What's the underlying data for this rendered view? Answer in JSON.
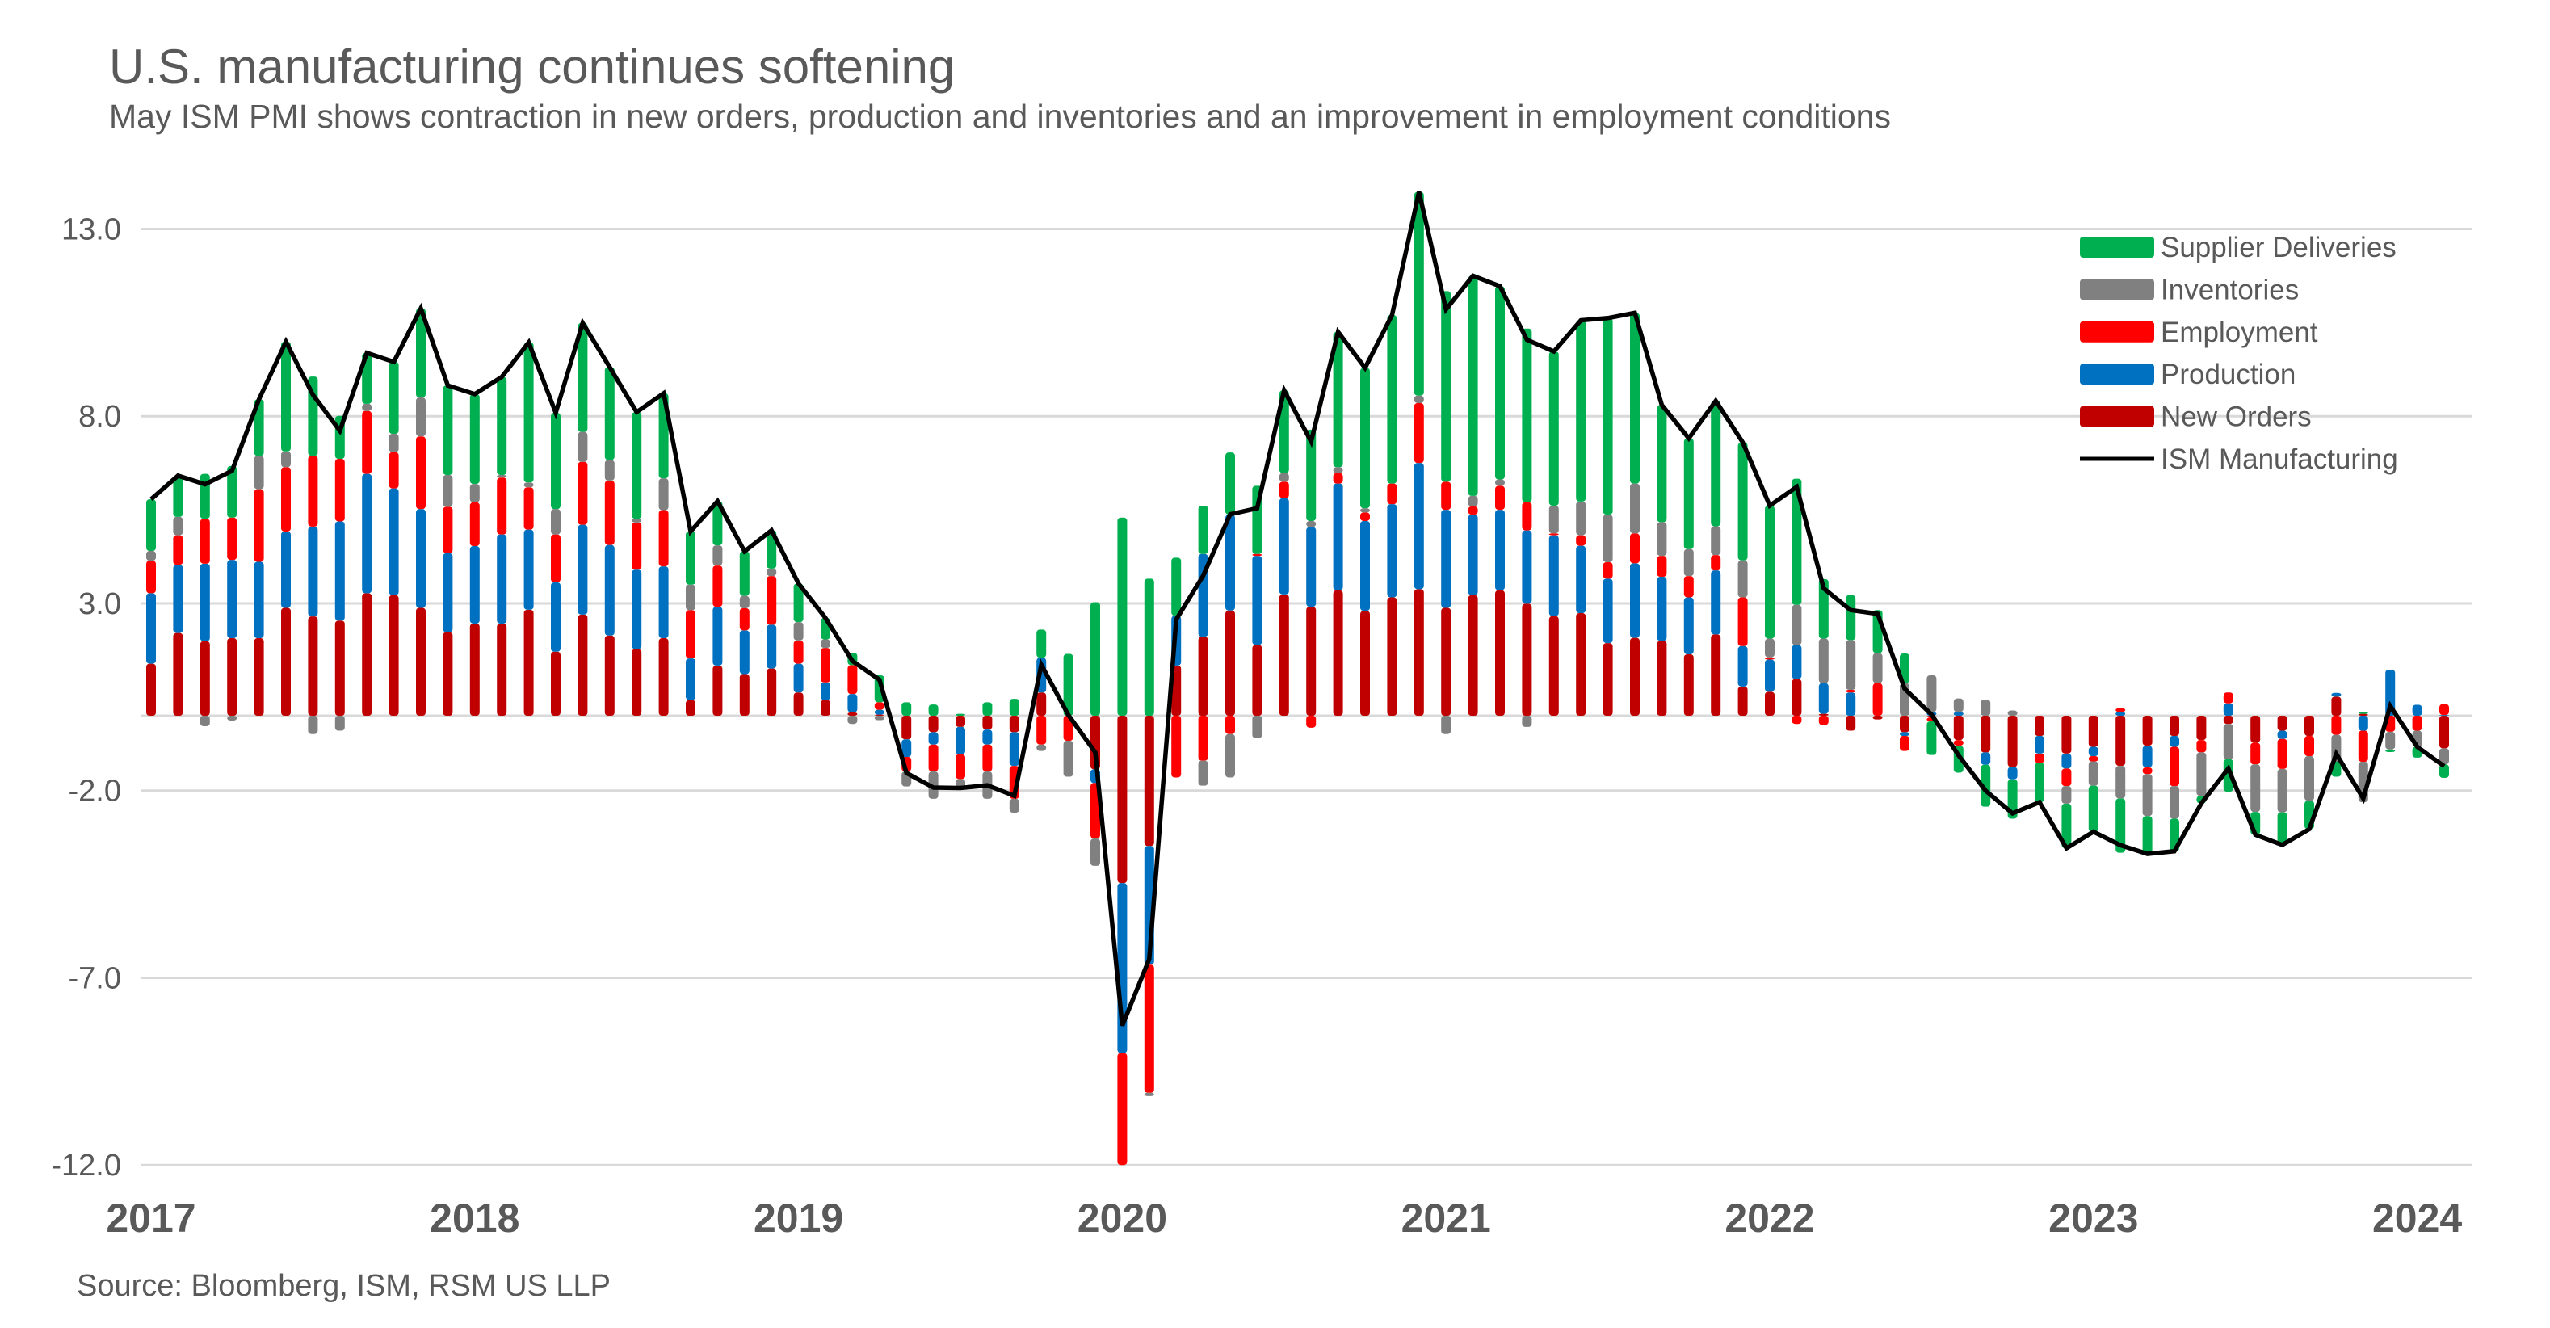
{
  "chart_data": {
    "type": "bar",
    "stacked": true,
    "title": "U.S. manufacturing continues softening",
    "subtitle": "May ISM PMI shows contraction in new orders, production and inventories and an improvement in employment conditions",
    "source": "Source: Bloomberg, ISM, RSM US LLP",
    "xlabel": "",
    "ylabel": "",
    "ylim": [
      -12,
      14
    ],
    "yticks": [
      13,
      8,
      3,
      -2,
      -7,
      -12
    ],
    "ytick_labels": [
      "13.0",
      "8.0",
      "3.0",
      "-2.0",
      "-7.0",
      "-12.0"
    ],
    "xtick_labels": [
      "2017",
      "2018",
      "2019",
      "2020",
      "2021",
      "2022",
      "2023",
      "2024"
    ],
    "grid": true,
    "legend_position": "top-right",
    "dates": [
      "2017-04",
      "2017-05",
      "2017-06",
      "2017-07",
      "2017-08",
      "2017-09",
      "2017-10",
      "2017-11",
      "2017-12",
      "2018-01",
      "2018-02",
      "2018-03",
      "2018-04",
      "2018-05",
      "2018-06",
      "2018-07",
      "2018-08",
      "2018-09",
      "2018-10",
      "2018-11",
      "2018-12",
      "2019-01",
      "2019-02",
      "2019-03",
      "2019-04",
      "2019-05",
      "2019-06",
      "2019-07",
      "2019-08",
      "2019-09",
      "2019-10",
      "2019-11",
      "2019-12",
      "2020-01",
      "2020-02",
      "2020-03",
      "2020-04",
      "2020-05",
      "2020-06",
      "2020-07",
      "2020-08",
      "2020-09",
      "2020-10",
      "2020-11",
      "2020-12",
      "2021-01",
      "2021-02",
      "2021-03",
      "2021-04",
      "2021-05",
      "2021-06",
      "2021-07",
      "2021-08",
      "2021-09",
      "2021-10",
      "2021-11",
      "2021-12",
      "2022-01",
      "2022-02",
      "2022-03",
      "2022-04",
      "2022-05",
      "2022-06",
      "2022-07",
      "2022-08",
      "2022-09",
      "2022-10",
      "2022-11",
      "2022-12",
      "2023-01",
      "2023-02",
      "2023-03",
      "2023-04",
      "2023-05",
      "2023-06",
      "2023-07",
      "2023-08",
      "2023-09",
      "2023-10",
      "2023-11",
      "2023-12",
      "2024-01",
      "2024-02",
      "2024-03",
      "2024-04",
      "2024-05"
    ],
    "series": [
      {
        "name": "New Orders",
        "color": "#C00000",
        "values": [
          1.39,
          2.21,
          1.99,
          2.07,
          2.07,
          2.88,
          2.65,
          2.54,
          3.27,
          3.22,
          2.88,
          2.23,
          2.46,
          2.46,
          2.83,
          1.71,
          2.7,
          2.14,
          1.78,
          2.07,
          0.42,
          1.34,
          1.11,
          1.26,
          0.62,
          0.42,
          0.09,
          0.03,
          -0.63,
          -0.44,
          -0.3,
          -0.37,
          -0.44,
          0.62,
          0.0,
          -1.43,
          -4.47,
          -3.48,
          1.34,
          2.11,
          2.81,
          1.89,
          3.24,
          2.91,
          3.35,
          2.8,
          3.16,
          3.38,
          2.88,
          3.22,
          3.35,
          2.99,
          2.66,
          2.74,
          1.94,
          2.08,
          2.0,
          1.64,
          2.17,
          0.78,
          0.64,
          0.98,
          0.05,
          -0.4,
          -0.1,
          -0.44,
          -0.05,
          -0.65,
          -0.98,
          -1.37,
          -0.54,
          -1.01,
          -0.83,
          -1.34,
          -0.8,
          -0.54,
          -0.65,
          -0.22,
          -0.72,
          -0.4,
          -0.54,
          0.51,
          0.05,
          0.0,
          0.0,
          -0.87
        ]
      },
      {
        "name": "Production",
        "color": "#0070C0",
        "values": [
          1.88,
          1.82,
          2.07,
          2.09,
          2.04,
          2.04,
          2.4,
          2.65,
          3.19,
          2.85,
          2.64,
          2.11,
          2.07,
          2.38,
          2.14,
          1.85,
          2.4,
          2.42,
          2.12,
          1.92,
          1.11,
          1.57,
          1.17,
          1.17,
          0.77,
          0.47,
          0.49,
          0.13,
          -0.47,
          -0.33,
          -0.73,
          -0.4,
          -0.9,
          0.93,
          0.0,
          -0.37,
          -4.54,
          -3.17,
          1.33,
          2.21,
          2.56,
          2.38,
          2.57,
          2.13,
          2.85,
          2.4,
          2.49,
          3.37,
          2.62,
          2.15,
          2.15,
          1.96,
          2.16,
          1.8,
          1.72,
          1.99,
          1.71,
          1.52,
          1.71,
          1.08,
          0.86,
          0.91,
          0.82,
          0.62,
          0.0,
          -0.1,
          0.1,
          0.1,
          -0.33,
          -0.33,
          -0.47,
          -0.4,
          -0.25,
          0.1,
          -0.58,
          -0.29,
          0.0,
          0.33,
          0.0,
          -0.22,
          0.0,
          0.1,
          -0.4,
          1.23,
          0.29,
          0.02
        ]
      },
      {
        "name": "Employment",
        "color": "#FF0000",
        "values": [
          0.87,
          0.79,
          1.2,
          1.13,
          1.94,
          1.72,
          1.89,
          1.67,
          1.68,
          0.97,
          1.94,
          1.24,
          1.17,
          1.52,
          1.13,
          1.28,
          1.68,
          1.72,
          1.26,
          1.5,
          1.29,
          1.1,
          0.59,
          1.3,
          0.62,
          0.92,
          0.77,
          0.2,
          -0.39,
          -0.72,
          -0.66,
          -0.72,
          -0.88,
          -0.77,
          -0.67,
          -1.48,
          -4.5,
          -3.42,
          -1.65,
          -1.2,
          -0.49,
          0.05,
          0.44,
          -0.32,
          0.28,
          0.23,
          0.55,
          1.6,
          0.75,
          0.22,
          0.64,
          0.75,
          0.05,
          0.28,
          0.44,
          0.8,
          0.56,
          0.57,
          0.41,
          1.3,
          0.06,
          -0.22,
          -0.25,
          0.07,
          0.87,
          -0.4,
          -0.1,
          -0.15,
          0.0,
          0.0,
          -0.25,
          -0.47,
          -0.14,
          0.1,
          -0.18,
          -1.05,
          -0.33,
          0.29,
          -0.58,
          -0.8,
          -0.54,
          -0.51,
          -0.83,
          -0.43,
          -0.4,
          0.29
        ]
      },
      {
        "name": "Inventories",
        "color": "#808080",
        "values": [
          0.26,
          0.49,
          -0.28,
          -0.13,
          0.89,
          0.42,
          -0.49,
          -0.4,
          0.19,
          0.49,
          1.04,
          0.85,
          0.49,
          0.07,
          0.13,
          0.68,
          0.8,
          0.55,
          0.1,
          0.85,
          0.68,
          0.54,
          0.33,
          0.2,
          0.49,
          0.23,
          -0.22,
          -0.12,
          -0.4,
          -0.73,
          -0.29,
          -0.73,
          -0.37,
          -0.17,
          -0.96,
          -0.73,
          -0.06,
          -0.09,
          0.0,
          -0.67,
          -1.16,
          -0.6,
          0.23,
          0.16,
          0.16,
          0.11,
          0.0,
          0.2,
          -0.49,
          0.28,
          0.17,
          -0.3,
          0.74,
          0.9,
          1.27,
          1.33,
          0.9,
          0.72,
          0.77,
          0.99,
          0.5,
          1.07,
          1.19,
          1.33,
          0.8,
          0.87,
          0.98,
          0.36,
          0.43,
          0.14,
          0.0,
          -0.47,
          -0.65,
          -0.87,
          -1.12,
          -0.87,
          -1.16,
          -0.94,
          -1.27,
          -1.16,
          -1.19,
          -0.72,
          -1.08,
          -0.47,
          -0.43,
          -0.43
        ]
      },
      {
        "name": "Supplier Deliveries",
        "color": "#00B050",
        "values": [
          1.38,
          1.1,
          1.2,
          1.38,
          1.51,
          2.93,
          2.12,
          1.15,
          1.36,
          1.92,
          2.38,
          2.39,
          2.4,
          2.62,
          3.74,
          2.57,
          2.91,
          2.48,
          2.85,
          2.27,
          1.42,
          1.18,
          1.19,
          1.02,
          1.03,
          0.57,
          0.33,
          0.72,
          0.36,
          0.3,
          0.05,
          0.36,
          0.45,
          0.75,
          1.65,
          3.03,
          5.29,
          3.66,
          1.55,
          1.29,
          1.66,
          1.82,
          2.21,
          2.44,
          3.61,
          3.75,
          4.5,
          5.44,
          5.09,
          5.88,
          5.16,
          4.64,
          4.12,
          4.84,
          5.25,
          4.56,
          3.13,
          2.96,
          3.35,
          3.15,
          3.55,
          3.37,
          1.59,
          1.2,
          1.15,
          0.79,
          -0.9,
          -0.72,
          -1.12,
          -1.05,
          -1.05,
          -1.19,
          -1.23,
          -1.45,
          -1.01,
          -0.87,
          -0.2,
          -0.87,
          -0.61,
          -0.87,
          -0.76,
          -0.4,
          0.05,
          -0.07,
          -0.29,
          -0.36
        ]
      }
    ],
    "line": {
      "name": "ISM Manufacturing",
      "color": "#000000",
      "values": [
        5.78,
        6.41,
        6.18,
        6.54,
        8.45,
        9.99,
        8.57,
        7.61,
        9.69,
        9.45,
        10.88,
        8.82,
        8.59,
        9.05,
        9.97,
        8.09,
        10.49,
        9.31,
        8.11,
        8.61,
        4.92,
        5.73,
        4.39,
        4.95,
        3.53,
        2.61,
        1.46,
        0.96,
        -1.53,
        -1.92,
        -1.93,
        -1.86,
        -2.14,
        1.36,
        0.02,
        -0.98,
        -8.28,
        -6.5,
        2.57,
        3.74,
        5.38,
        5.54,
        8.69,
        7.32,
        10.25,
        9.29,
        10.7,
        13.99,
        10.85,
        11.75,
        11.47,
        10.04,
        9.73,
        10.56,
        10.62,
        10.76,
        8.3,
        7.41,
        8.41,
        7.3,
        5.61,
        6.11,
        3.4,
        2.82,
        2.72,
        0.72,
        0.03,
        -1.06,
        -2.0,
        -2.61,
        -2.31,
        -3.54,
        -3.1,
        -3.46,
        -3.69,
        -3.62,
        -2.34,
        -1.41,
        -3.18,
        -3.45,
        -3.03,
        -1.02,
        -2.21,
        0.26,
        -0.83,
        -1.35
      ]
    },
    "legend_order": [
      "Supplier Deliveries",
      "Inventories",
      "Employment",
      "Production",
      "New Orders",
      "ISM Manufacturing"
    ]
  }
}
